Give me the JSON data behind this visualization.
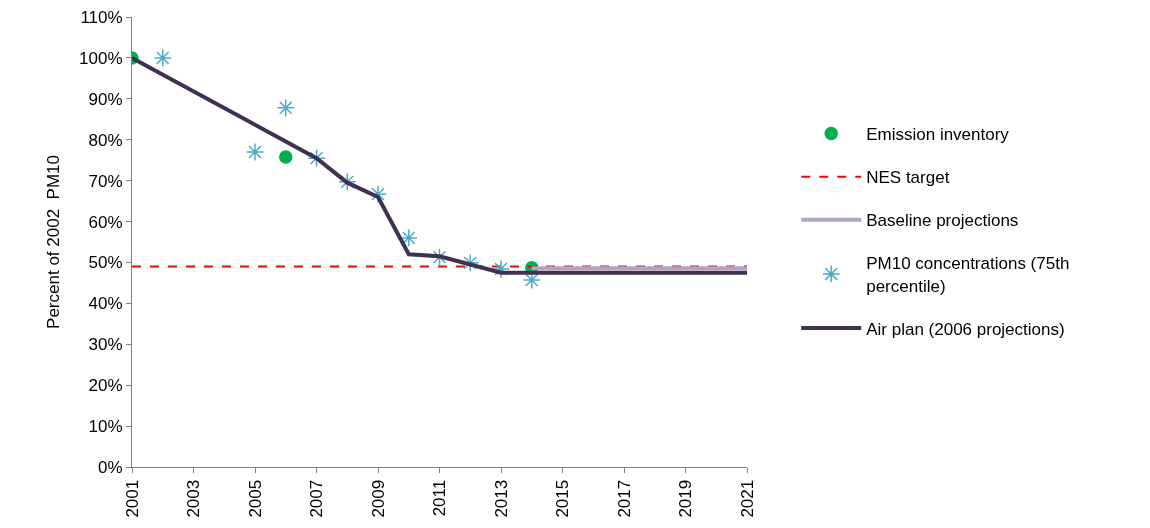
{
  "chart_data": {
    "type": "line",
    "ylabel": "Percent of 2002  PM10",
    "xlim": [
      2001,
      2021
    ],
    "xticks": [
      2001,
      2003,
      2005,
      2007,
      2009,
      2011,
      2013,
      2015,
      2017,
      2019,
      2021
    ],
    "ylim": [
      0,
      110
    ],
    "yticks": [
      {
        "value": 0,
        "label": "0%"
      },
      {
        "value": 10,
        "label": "10%"
      },
      {
        "value": 20,
        "label": "20%"
      },
      {
        "value": 30,
        "label": "30%"
      },
      {
        "value": 40,
        "label": "40%"
      },
      {
        "value": 50,
        "label": "50%"
      },
      {
        "value": 60,
        "label": "60%"
      },
      {
        "value": 70,
        "label": "70%"
      },
      {
        "value": 80,
        "label": "80%"
      },
      {
        "value": 90,
        "label": "90%"
      },
      {
        "value": 100,
        "label": "100%"
      },
      {
        "value": 110,
        "label": "110%"
      }
    ],
    "legend": "right",
    "series": [
      {
        "name": "Emission inventory",
        "type": "scatter",
        "marker": "circle",
        "color": "#00b050",
        "x": [
          2001,
          2006,
          2014
        ],
        "values": [
          100,
          75.8,
          48.7
        ]
      },
      {
        "name": "NES target",
        "line_style": "dashed",
        "marker": "none",
        "color": "#ff0000",
        "x": [
          2001,
          2021
        ],
        "values": [
          49,
          49
        ]
      },
      {
        "name": "Baseline projections",
        "line_style": "solid",
        "marker": "none",
        "color": "#b3a2c7",
        "x": [
          2014,
          2021
        ],
        "values": [
          48.6,
          48.6
        ]
      },
      {
        "name": "PM10 concentrations (75th percentile)",
        "type": "scatter",
        "marker": "cross",
        "color": "#4bacc6",
        "x": [
          2002,
          2005,
          2006,
          2007,
          2008,
          2009,
          2010,
          2011,
          2012,
          2013,
          2014
        ],
        "values": [
          100,
          77.0,
          87.8,
          75.5,
          69.7,
          66.7,
          56.0,
          51.3,
          49.9,
          48.4,
          45.7
        ]
      },
      {
        "name": "Air plan (2006 projections)",
        "line_style": "solid",
        "marker": "none",
        "color": "#403152",
        "x": [
          2001,
          2007,
          2008,
          2009,
          2010,
          2011,
          2012,
          2013,
          2014,
          2021
        ],
        "values": [
          100,
          75.5,
          69.5,
          66,
          52,
          51.5,
          49.5,
          47.5,
          47.5,
          47.5
        ]
      }
    ]
  }
}
